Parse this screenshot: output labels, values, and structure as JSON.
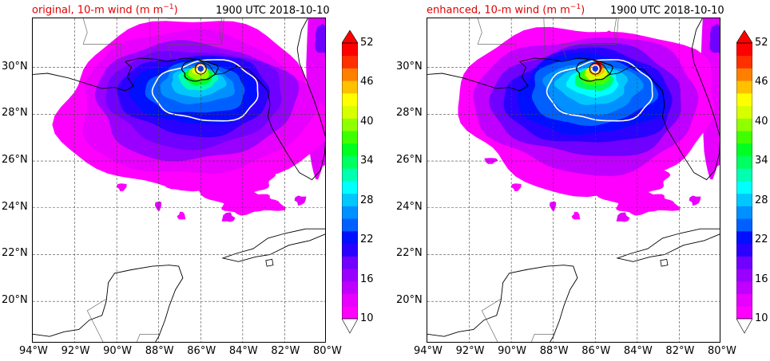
{
  "colors": {
    "title": "#e00000",
    "levels": [
      "#ff00ff",
      "#e800ff",
      "#c000ff",
      "#9a00ff",
      "#7000ff",
      "#2a00ff",
      "#0010ff",
      "#0060ff",
      "#0090ff",
      "#00c8ff",
      "#00ffff",
      "#00ffb0",
      "#00ff60",
      "#00ff20",
      "#40ff00",
      "#90ff00",
      "#d8ff00",
      "#ffff00",
      "#ffc000",
      "#ff8000",
      "#ff3000",
      "#ff0000"
    ]
  },
  "panels": [
    {
      "title": "original, 10-m wind (m m",
      "title_sup": "−1",
      "title_close": ")",
      "time": "1900 UTC 2018-10-10",
      "peak": "strong"
    },
    {
      "title": "enhanced, 10-m wind (m m",
      "title_sup": "−1",
      "title_close": ")",
      "time": "1900 UTC 2018-10-10",
      "peak": "strong"
    }
  ],
  "lat_labels": [
    "30°N",
    "28°N",
    "26°N",
    "24°N",
    "22°N",
    "20°N"
  ],
  "lon_labels": [
    "94°W",
    "92°W",
    "90°W",
    "88°W",
    "86°W",
    "84°W",
    "82°W",
    "80°W"
  ],
  "colorbar": {
    "ticks": [
      "52",
      "46",
      "40",
      "34",
      "28",
      "22",
      "16",
      "10"
    ],
    "min": 10,
    "max": 52
  }
}
